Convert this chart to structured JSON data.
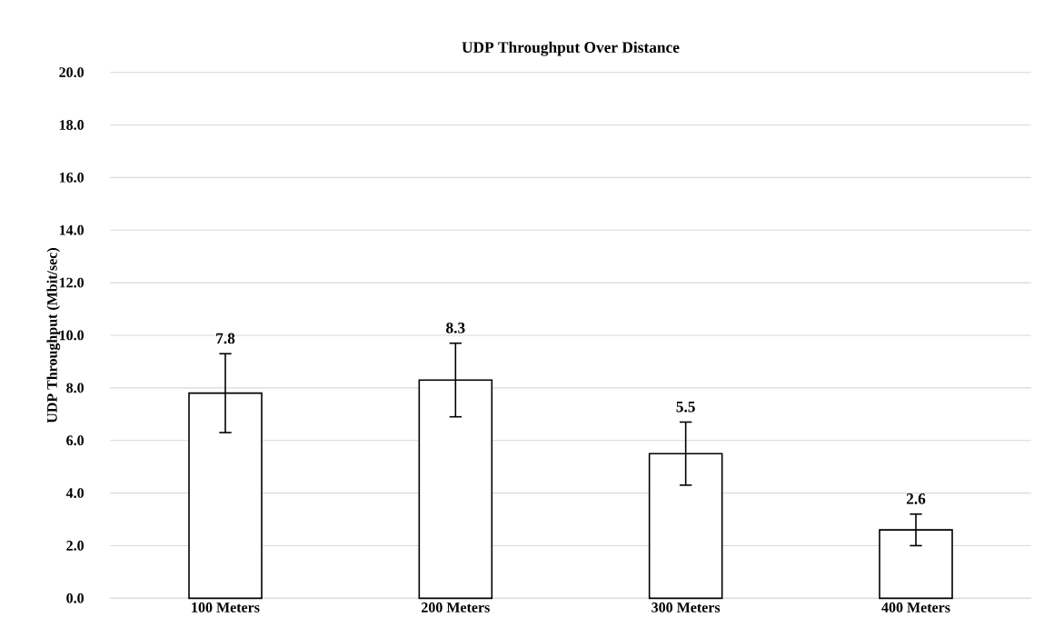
{
  "chart_data": {
    "type": "bar",
    "title": "UDP Throughput Over Distance",
    "ylabel": "UDP Throughput  (Mbit/sec)",
    "categories": [
      "100 Meters",
      "200 Meters",
      "300 Meters",
      "400 Meters"
    ],
    "values": [
      7.8,
      8.3,
      5.5,
      2.6
    ],
    "errors": [
      1.5,
      1.4,
      1.2,
      0.6
    ],
    "color": "#000000",
    "ylim": [
      0,
      20
    ],
    "yticks": [
      {
        "value": 0,
        "label": "0.0"
      },
      {
        "value": 2,
        "label": "2.0"
      },
      {
        "value": 4,
        "label": "4.0"
      },
      {
        "value": 6,
        "label": "6.0"
      },
      {
        "value": 8,
        "label": "8.0"
      },
      {
        "value": 10,
        "label": "10.0"
      },
      {
        "value": 12,
        "label": "12.0"
      },
      {
        "value": 14,
        "label": "14.0"
      },
      {
        "value": 16,
        "label": "16.0"
      },
      {
        "value": 18,
        "label": "18.0"
      },
      {
        "value": 20,
        "label": "20.0"
      }
    ],
    "grid": "y",
    "data_labels": true
  }
}
